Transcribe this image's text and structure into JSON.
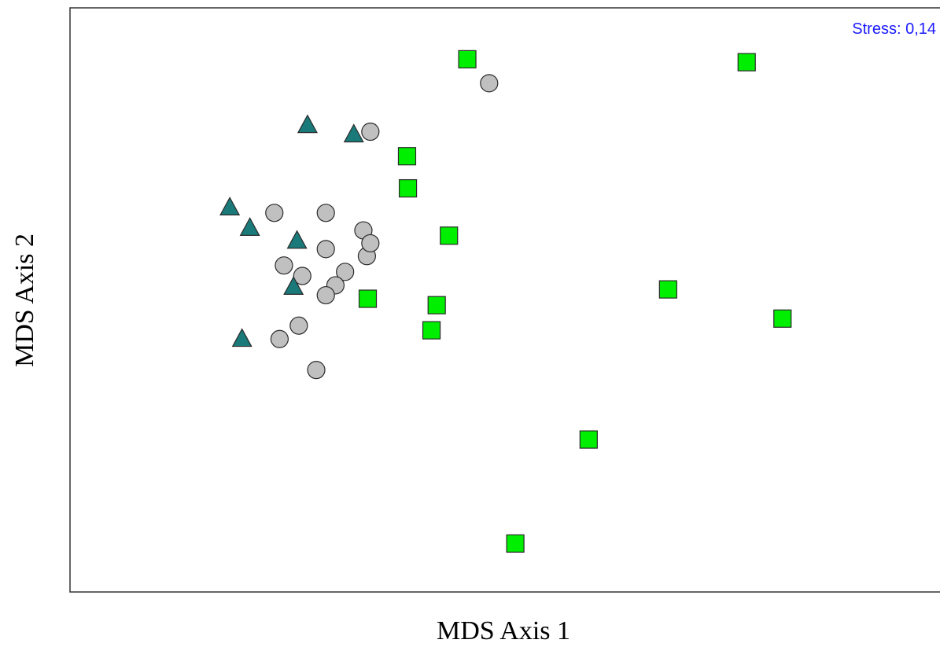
{
  "chart_data": {
    "type": "scatter",
    "title": "",
    "xlabel": "MDS Axis 1",
    "ylabel": "MDS Axis 2",
    "xlim": [
      0,
      1
    ],
    "ylim": [
      0,
      1
    ],
    "grid": false,
    "ticks": false,
    "annotation": {
      "text": "Stress: 0,14",
      "placement": "top-right",
      "color": "#1a1aff"
    },
    "series": [
      {
        "marker": "square",
        "color": "#00ee00",
        "points": [
          [
            0.455,
            0.912
          ],
          [
            0.775,
            0.907
          ],
          [
            0.386,
            0.746
          ],
          [
            0.387,
            0.691
          ],
          [
            0.434,
            0.61
          ],
          [
            0.685,
            0.518
          ],
          [
            0.341,
            0.502
          ],
          [
            0.42,
            0.491
          ],
          [
            0.414,
            0.448
          ],
          [
            0.816,
            0.468
          ],
          [
            0.594,
            0.261
          ],
          [
            0.51,
            0.083
          ]
        ]
      },
      {
        "marker": "circle",
        "color": "#c0c0c0",
        "points": [
          [
            0.48,
            0.871
          ],
          [
            0.344,
            0.788
          ],
          [
            0.234,
            0.649
          ],
          [
            0.293,
            0.649
          ],
          [
            0.336,
            0.619
          ],
          [
            0.34,
            0.575
          ],
          [
            0.293,
            0.587
          ],
          [
            0.344,
            0.597
          ],
          [
            0.245,
            0.559
          ],
          [
            0.266,
            0.541
          ],
          [
            0.315,
            0.548
          ],
          [
            0.304,
            0.525
          ],
          [
            0.293,
            0.508
          ],
          [
            0.262,
            0.456
          ],
          [
            0.24,
            0.433
          ],
          [
            0.282,
            0.38
          ]
        ]
      },
      {
        "marker": "triangle",
        "color": "#1a7a7a",
        "points": [
          [
            0.272,
            0.8
          ],
          [
            0.325,
            0.784
          ],
          [
            0.183,
            0.659
          ],
          [
            0.206,
            0.624
          ],
          [
            0.26,
            0.602
          ],
          [
            0.256,
            0.523
          ],
          [
            0.197,
            0.434
          ]
        ]
      }
    ]
  }
}
